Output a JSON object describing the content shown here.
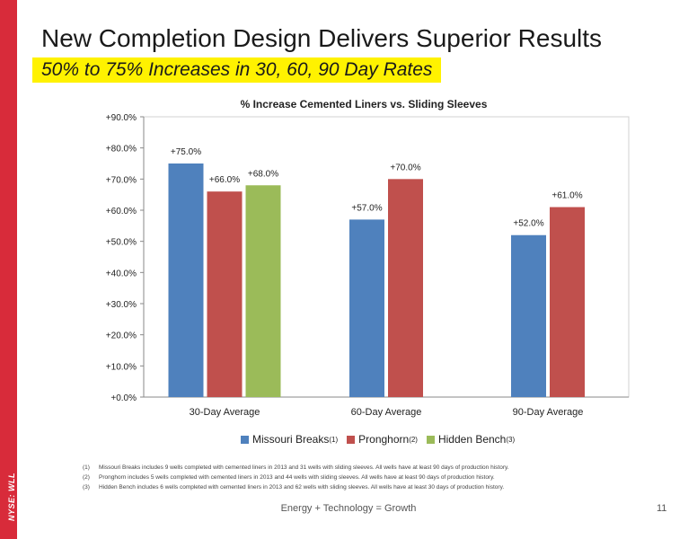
{
  "side_label": "NYSE: WLL",
  "slide_title": "New Completion Design Delivers Superior Results",
  "slide_subtitle": "50% to 75% Increases in 30, 60, 90 Day Rates",
  "chart_data": {
    "type": "bar",
    "title": "% Increase Cemented Liners vs. Sliding Sleeves",
    "categories": [
      "30-Day Average",
      "60-Day Average",
      "90-Day Average"
    ],
    "ylim": [
      0,
      90
    ],
    "yticks": [
      "+0.0%",
      "+10.0%",
      "+20.0%",
      "+30.0%",
      "+40.0%",
      "+50.0%",
      "+60.0%",
      "+70.0%",
      "+80.0%",
      "+90.0%"
    ],
    "grid": false,
    "legend_position": "bottom",
    "series": [
      {
        "name": "Missouri Breaks",
        "sup": "(1)",
        "color": "#4f81bd",
        "values": [
          75,
          57,
          52
        ],
        "labels": [
          "+75.0%",
          "+57.0%",
          "+52.0%"
        ]
      },
      {
        "name": "Pronghorn",
        "sup": "(2)",
        "color": "#c0504d",
        "values": [
          66,
          70,
          61
        ],
        "labels": [
          "+66.0%",
          "+70.0%",
          "+61.0%"
        ]
      },
      {
        "name": "Hidden Bench",
        "sup": "(3)",
        "color": "#9bbb59",
        "values": [
          68,
          null,
          null
        ],
        "labels": [
          "+68.0%",
          "",
          ""
        ]
      }
    ]
  },
  "footnotes": [
    {
      "num": "(1)",
      "text": "Missouri Breaks includes 9 wells completed with cemented liners in 2013 and 31 wells with sliding sleeves.  All wells have at least 90 days of production history."
    },
    {
      "num": "(2)",
      "text": "Pronghorn includes 5 wells completed with cemented liners in 2013 and 44 wells with sliding sleeves. All wells have at least 90 days of production history."
    },
    {
      "num": "(3)",
      "text": "Hidden Bench includes  6 wells completed with cemented liners in 2013 and 62 wells with sliding sleeves. All wells have at least 30 days of production history."
    }
  ],
  "footer_text": "Energy + Technology = Growth",
  "page_number": "11"
}
